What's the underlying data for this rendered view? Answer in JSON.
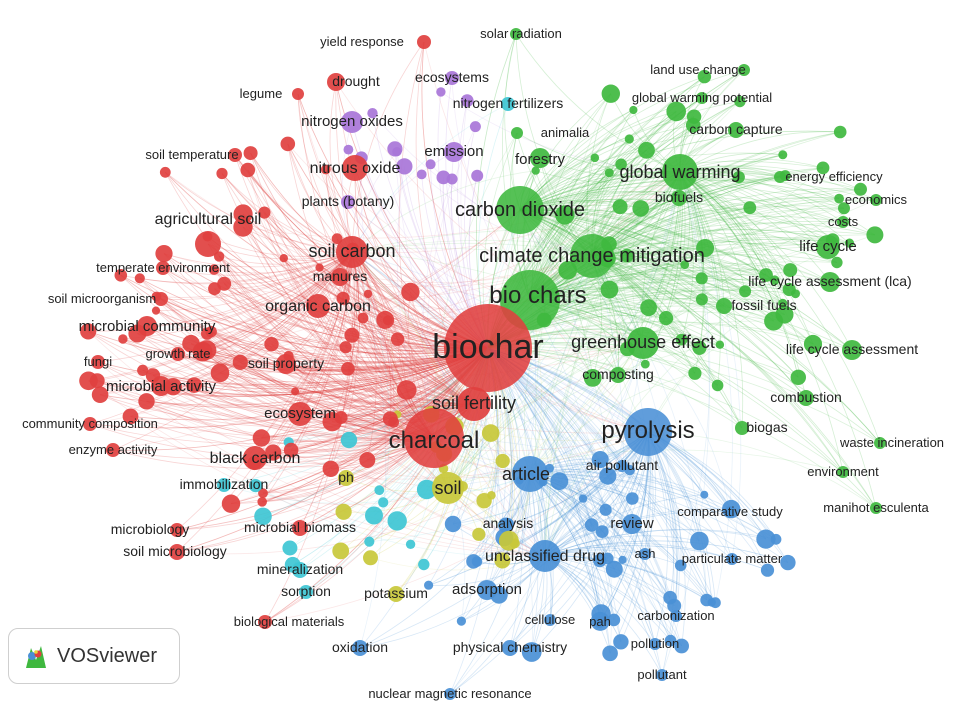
{
  "app": {
    "brand_label": "VOSviewer"
  },
  "colors": {
    "red": "#e0403f",
    "green": "#3fb83f",
    "blue": "#4a90d6",
    "purple": "#a875d8",
    "yellow": "#c8c83a",
    "cyan": "#3ec6d4"
  },
  "network": {
    "nodes": [
      {
        "label": "biochar",
        "cluster": "red",
        "weight": 10
      },
      {
        "label": "charcoal",
        "cluster": "red",
        "weight": 7
      },
      {
        "label": "soil fertility",
        "cluster": "red",
        "weight": 5
      },
      {
        "label": "soil carbon",
        "cluster": "red",
        "weight": 5
      },
      {
        "label": "organic carbon",
        "cluster": "red",
        "weight": 4
      },
      {
        "label": "agricultural soil",
        "cluster": "red",
        "weight": 4
      },
      {
        "label": "black carbon",
        "cluster": "red",
        "weight": 4
      },
      {
        "label": "microbial activity",
        "cluster": "red",
        "weight": 3
      },
      {
        "label": "microbial community",
        "cluster": "red",
        "weight": 3
      },
      {
        "label": "nitrous oxide",
        "cluster": "red",
        "weight": 4
      },
      {
        "label": "ecosystem",
        "cluster": "red",
        "weight": 3
      },
      {
        "label": "drought",
        "cluster": "red",
        "weight": 2
      },
      {
        "label": "yield response",
        "cluster": "red",
        "weight": 1
      },
      {
        "label": "legume",
        "cluster": "red",
        "weight": 1
      },
      {
        "label": "soil temperature",
        "cluster": "red",
        "weight": 1
      },
      {
        "label": "temperate environment",
        "cluster": "red",
        "weight": 1
      },
      {
        "label": "soil microorganism",
        "cluster": "red",
        "weight": 1
      },
      {
        "label": "fungi",
        "cluster": "red",
        "weight": 1
      },
      {
        "label": "growth rate",
        "cluster": "red",
        "weight": 1
      },
      {
        "label": "soil property",
        "cluster": "red",
        "weight": 2
      },
      {
        "label": "community composition",
        "cluster": "red",
        "weight": 1
      },
      {
        "label": "enzyme activity",
        "cluster": "red",
        "weight": 1
      },
      {
        "label": "microbiology",
        "cluster": "red",
        "weight": 2
      },
      {
        "label": "soil microbiology",
        "cluster": "red",
        "weight": 2
      },
      {
        "label": "microbial biomass",
        "cluster": "red",
        "weight": 2
      },
      {
        "label": "biological materials",
        "cluster": "red",
        "weight": 1
      },
      {
        "label": "manures",
        "cluster": "red",
        "weight": 2
      },
      {
        "label": "bio chars",
        "cluster": "green",
        "weight": 7
      },
      {
        "label": "carbon dioxide",
        "cluster": "green",
        "weight": 6
      },
      {
        "label": "climate change mitigation",
        "cluster": "green",
        "weight": 6
      },
      {
        "label": "global warming",
        "cluster": "green",
        "weight": 5
      },
      {
        "label": "greenhouse effect",
        "cluster": "green",
        "weight": 5
      },
      {
        "label": "forestry",
        "cluster": "green",
        "weight": 3
      },
      {
        "label": "life cycle",
        "cluster": "green",
        "weight": 3
      },
      {
        "label": "life cycle assessment (lca)",
        "cluster": "green",
        "weight": 2
      },
      {
        "label": "life cycle assessment",
        "cluster": "green",
        "weight": 2
      },
      {
        "label": "fossil fuels",
        "cluster": "green",
        "weight": 2
      },
      {
        "label": "combustion",
        "cluster": "green",
        "weight": 2
      },
      {
        "label": "biogas",
        "cluster": "green",
        "weight": 2
      },
      {
        "label": "waste incineration",
        "cluster": "green",
        "weight": 1
      },
      {
        "label": "environment",
        "cluster": "green",
        "weight": 1
      },
      {
        "label": "manihot esculenta",
        "cluster": "green",
        "weight": 1
      },
      {
        "label": "carbon capture",
        "cluster": "green",
        "weight": 2
      },
      {
        "label": "energy efficiency",
        "cluster": "green",
        "weight": 1
      },
      {
        "label": "economics",
        "cluster": "green",
        "weight": 1
      },
      {
        "label": "costs",
        "cluster": "green",
        "weight": 1
      },
      {
        "label": "biofuels",
        "cluster": "green",
        "weight": 2
      },
      {
        "label": "animalia",
        "cluster": "green",
        "weight": 1
      },
      {
        "label": "global warming potential",
        "cluster": "green",
        "weight": 1
      },
      {
        "label": "land use change",
        "cluster": "green",
        "weight": 1
      },
      {
        "label": "solar radiation",
        "cluster": "green",
        "weight": 1
      },
      {
        "label": "composting",
        "cluster": "green",
        "weight": 2
      },
      {
        "label": "pyrolysis",
        "cluster": "blue",
        "weight": 7
      },
      {
        "label": "article",
        "cluster": "blue",
        "weight": 5
      },
      {
        "label": "unclassified drug",
        "cluster": "blue",
        "weight": 4
      },
      {
        "label": "review",
        "cluster": "blue",
        "weight": 3
      },
      {
        "label": "adsorption",
        "cluster": "blue",
        "weight": 3
      },
      {
        "label": "air pollutant",
        "cluster": "blue",
        "weight": 2
      },
      {
        "label": "comparative study",
        "cluster": "blue",
        "weight": 1
      },
      {
        "label": "particulate matter",
        "cluster": "blue",
        "weight": 1
      },
      {
        "label": "ash",
        "cluster": "blue",
        "weight": 1
      },
      {
        "label": "analysis",
        "cluster": "blue",
        "weight": 2
      },
      {
        "label": "cellulose",
        "cluster": "blue",
        "weight": 1
      },
      {
        "label": "pah",
        "cluster": "blue",
        "weight": 1
      },
      {
        "label": "carbonization",
        "cluster": "blue",
        "weight": 1
      },
      {
        "label": "pollution",
        "cluster": "blue",
        "weight": 1
      },
      {
        "label": "pollutant",
        "cluster": "blue",
        "weight": 1
      },
      {
        "label": "physical chemistry",
        "cluster": "blue",
        "weight": 2
      },
      {
        "label": "nuclear magnetic resonance",
        "cluster": "blue",
        "weight": 1
      },
      {
        "label": "oxidation",
        "cluster": "blue",
        "weight": 2
      },
      {
        "label": "nitrogen oxides",
        "cluster": "purple",
        "weight": 3
      },
      {
        "label": "ecosystems",
        "cluster": "purple",
        "weight": 2
      },
      {
        "label": "emission",
        "cluster": "purple",
        "weight": 3
      },
      {
        "label": "plants (botany)",
        "cluster": "purple",
        "weight": 2
      },
      {
        "label": "soil",
        "cluster": "yellow",
        "weight": 5
      },
      {
        "label": "ph",
        "cluster": "yellow",
        "weight": 2
      },
      {
        "label": "potassium",
        "cluster": "yellow",
        "weight": 2
      },
      {
        "label": "nitrogen fertilizers",
        "cluster": "cyan",
        "weight": 2
      },
      {
        "label": "immobilization",
        "cluster": "cyan",
        "weight": 2
      },
      {
        "label": "mineralization",
        "cluster": "cyan",
        "weight": 2
      },
      {
        "label": "sorption",
        "cluster": "cyan",
        "weight": 2
      }
    ]
  }
}
